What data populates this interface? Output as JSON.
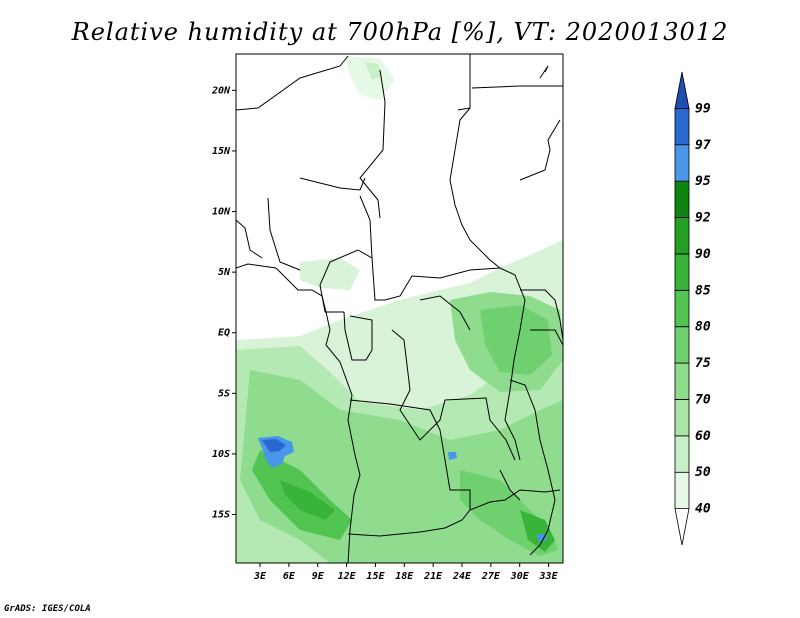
{
  "title": "Relative humidity at 700hPa [%], VT: 2020013012",
  "credit": "GrADS: IGES/COLA",
  "map": {
    "lat_range": [
      -19,
      23
    ],
    "lon_range": [
      0.5,
      34.5
    ],
    "lat_ticks": [
      {
        "value": 20,
        "label": "20N"
      },
      {
        "value": 15,
        "label": "15N"
      },
      {
        "value": 10,
        "label": "10N"
      },
      {
        "value": 5,
        "label": "5N"
      },
      {
        "value": 0,
        "label": "EQ"
      },
      {
        "value": -5,
        "label": "5S"
      },
      {
        "value": -10,
        "label": "10S"
      },
      {
        "value": -15,
        "label": "15S"
      }
    ],
    "lon_ticks": [
      {
        "value": 3,
        "label": "3E"
      },
      {
        "value": 6,
        "label": "6E"
      },
      {
        "value": 9,
        "label": "9E"
      },
      {
        "value": 12,
        "label": "12E"
      },
      {
        "value": 15,
        "label": "15E"
      },
      {
        "value": 18,
        "label": "18E"
      },
      {
        "value": 21,
        "label": "21E"
      },
      {
        "value": 24,
        "label": "24E"
      },
      {
        "value": 27,
        "label": "27E"
      },
      {
        "value": 30,
        "label": "30E"
      },
      {
        "value": 33,
        "label": "33E"
      }
    ]
  },
  "colorbar": {
    "levels": [
      "40",
      "50",
      "60",
      "70",
      "75",
      "80",
      "85",
      "90",
      "92",
      "95",
      "97",
      "99"
    ],
    "colors": [
      "#ffffff",
      "#e6f9e6",
      "#c8f0c8",
      "#a8e6a8",
      "#8cdc8c",
      "#6fd06f",
      "#52c452",
      "#38b438",
      "#239f23",
      "#108410",
      "#4a96e8",
      "#2a6ad0",
      "#1e4eb0"
    ]
  }
}
